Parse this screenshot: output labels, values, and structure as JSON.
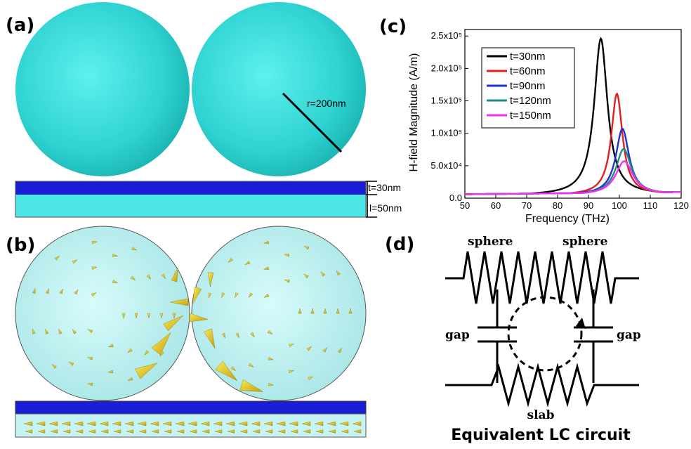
{
  "panels": {
    "a": {
      "label": "(a)",
      "radius_label": "r=200nm",
      "t_label": "t=30nm",
      "l_label": "l=50nm"
    },
    "b": {
      "label": "(b)"
    },
    "c": {
      "label": "(c)"
    },
    "d": {
      "label": "(d)",
      "sphere_left": "sphere",
      "sphere_right": "sphere",
      "gap_left": "gap",
      "gap_right": "gap",
      "slab": "slab",
      "title": "Equivalent LC circuit"
    }
  },
  "colors": {
    "sphere": "#33d6d4",
    "slab_top": "#1a1fd6",
    "slab_bottom": "#4de6e6",
    "arrow": "#e8d21a"
  },
  "chart_data": {
    "type": "line",
    "xlabel": "Frequency (THz)",
    "ylabel": "H-field Magnitude (A/m)",
    "xlim": [
      50,
      120
    ],
    "ylim": [
      0,
      260000
    ],
    "x_ticks": [
      50,
      60,
      70,
      80,
      90,
      100,
      110,
      120
    ],
    "y_ticks": [
      {
        "value": 0,
        "label": "0.0"
      },
      {
        "value": 50000,
        "label": "5.0x10⁴"
      },
      {
        "value": 100000,
        "label": "1.0x10⁵"
      },
      {
        "value": 150000,
        "label": "1.5x10⁵"
      },
      {
        "value": 200000,
        "label": "2.0x10⁵"
      },
      {
        "value": 250000,
        "label": "2.5x10⁵"
      }
    ],
    "legend_position": "top-left",
    "series": [
      {
        "name": "t=30nm",
        "color": "#000000",
        "peak_x": 94.0,
        "peak_y": 246000,
        "width": 2.6
      },
      {
        "name": "t=60nm",
        "color": "#e02020",
        "peak_x": 99.2,
        "peak_y": 161000,
        "width": 2.2
      },
      {
        "name": "t=90nm",
        "color": "#2030c8",
        "peak_x": 101.0,
        "peak_y": 107000,
        "width": 2.6
      },
      {
        "name": "t=120nm",
        "color": "#1e8c86",
        "peak_x": 101.4,
        "peak_y": 76000,
        "width": 3.0
      },
      {
        "name": "t=150nm",
        "color": "#ee33ee",
        "peak_x": 101.6,
        "peak_y": 57000,
        "width": 3.4
      }
    ]
  }
}
